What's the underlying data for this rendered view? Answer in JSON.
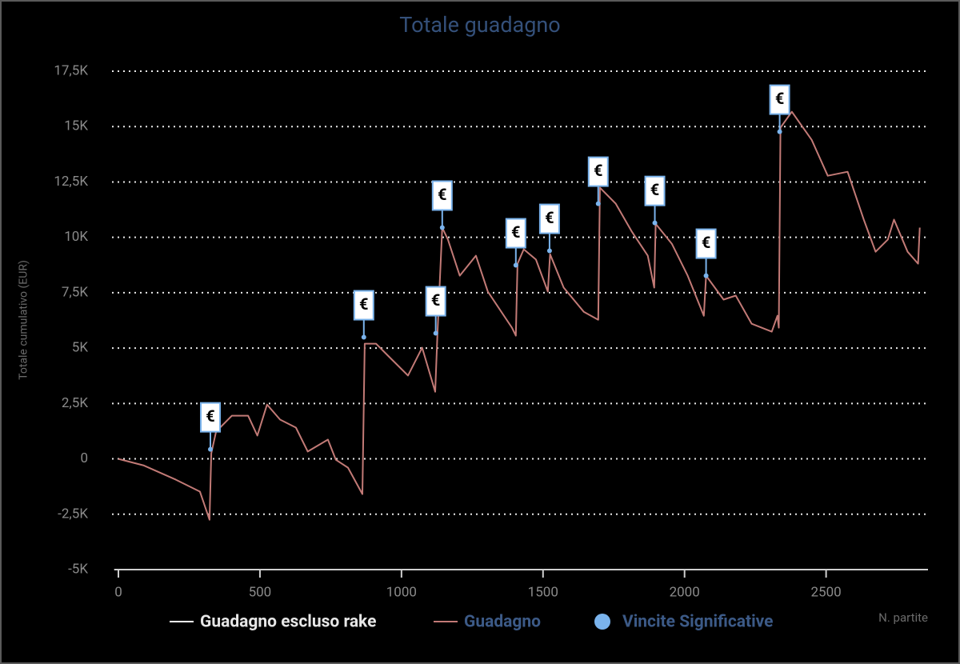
{
  "chart_data": {
    "type": "line",
    "title": "Totale guadagno",
    "y_label": "Totale cumulativo (EUR)",
    "x_label": "N. partite",
    "xlim": [
      -15,
      2860
    ],
    "xticks": [
      0,
      500,
      1000,
      1500,
      2000,
      2500
    ],
    "ylim": [
      -5000,
      17500
    ],
    "yticks": [
      {
        "value": -5000,
        "label": "-5K"
      },
      {
        "value": -2500,
        "label": "-2,5K"
      },
      0,
      {
        "value": 2500,
        "label": "2,5K"
      },
      {
        "value": 5000,
        "label": "5K"
      },
      {
        "value": 7500,
        "label": "7,5K"
      },
      {
        "value": 10000,
        "label": "10K"
      },
      {
        "value": 12500,
        "label": "12,5K"
      },
      {
        "value": 15000,
        "label": "15K"
      },
      {
        "value": 17500,
        "label": "17,5K"
      }
    ],
    "grid": true,
    "legend": "bottom",
    "series": [
      {
        "name": "Guadagno escluso rake",
        "color": "#ffffff",
        "visible": false,
        "x": [],
        "values": []
      },
      {
        "name": "Guadagno",
        "color": "#c27a76",
        "visible": true,
        "x": [
          0,
          90,
          203,
          288,
          322,
          328,
          345,
          401,
          458,
          491,
          525,
          571,
          627,
          669,
          740,
          768,
          811,
          862,
          870,
          910,
          952,
          1023,
          1073,
          1119,
          1127,
          1144,
          1164,
          1206,
          1263,
          1305,
          1390,
          1404,
          1410,
          1432,
          1475,
          1517,
          1525,
          1573,
          1644,
          1695,
          1701,
          1757,
          1814,
          1870,
          1893,
          1898,
          1955,
          2011,
          2068,
          2076,
          2138,
          2181,
          2237,
          2308,
          2328,
          2333,
          2339,
          2379,
          2449,
          2506,
          2576,
          2633,
          2675,
          2718,
          2740,
          2788,
          2825,
          2831
        ],
        "values": [
          0,
          -300,
          -940,
          -1480,
          -2750,
          250,
          1230,
          1950,
          1950,
          1050,
          2450,
          1770,
          1410,
          330,
          870,
          -40,
          -400,
          -1590,
          5200,
          5200,
          4660,
          3760,
          5020,
          3030,
          5630,
          10440,
          9900,
          8270,
          9170,
          7550,
          5920,
          5560,
          8810,
          9460,
          9000,
          7550,
          9240,
          7730,
          6640,
          6280,
          12240,
          11520,
          10250,
          9170,
          7730,
          10610,
          9710,
          8270,
          6460,
          8270,
          7190,
          7370,
          6100,
          5740,
          6460,
          5920,
          14950,
          15670,
          14400,
          12780,
          12960,
          10800,
          9350,
          9900,
          10800,
          9350,
          8810,
          10440
        ]
      },
      {
        "name": "Vincite Significative",
        "color": "#7ab3ec",
        "visible": true,
        "type": "scatter",
        "x": [
          325,
          867,
          1121,
          1144,
          1404,
          1523,
          1695,
          1895,
          2076,
          2336
        ],
        "values": [
          430,
          5490,
          5670,
          10440,
          8740,
          9390,
          11520,
          10650,
          8270,
          14770
        ],
        "labels": [
          "€",
          "€",
          "€",
          "€",
          "€",
          "€",
          "€",
          "€",
          "€",
          "€"
        ]
      }
    ]
  }
}
